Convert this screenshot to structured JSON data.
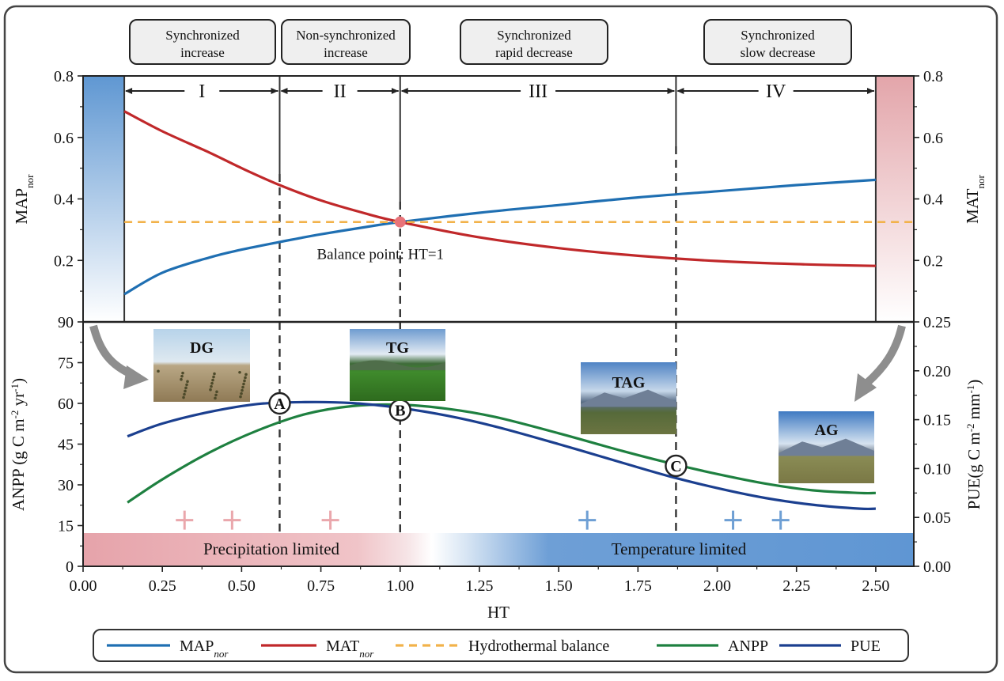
{
  "chart_data": [
    {
      "type": "line",
      "panel": "top",
      "ylabel_left": "MAP",
      "ylabel_left_sub": "nor",
      "ylabel_right": "MAT",
      "ylabel_right_sub": "nor",
      "ylim": [
        0.0,
        0.8
      ],
      "xlim": [
        0.0,
        2.62
      ],
      "y_ticks_left": [
        "0.8",
        "0.6",
        "0.4",
        "0.2"
      ],
      "y_ticks_right": [
        "0.8",
        "0.6",
        "0.4",
        "0.2"
      ],
      "series": [
        {
          "name": "MAP",
          "name_sub": "nor",
          "color": "#1f6fb2",
          "x": [
            0.13,
            0.25,
            0.4,
            0.5,
            0.62,
            0.75,
            0.9,
            1.0,
            1.25,
            1.5,
            1.75,
            2.0,
            2.25,
            2.5
          ],
          "y": [
            0.09,
            0.16,
            0.21,
            0.235,
            0.26,
            0.285,
            0.31,
            0.325,
            0.355,
            0.38,
            0.405,
            0.425,
            0.445,
            0.462
          ]
        },
        {
          "name": "MAT",
          "name_sub": "nor",
          "color": "#c0282a",
          "x": [
            0.13,
            0.25,
            0.4,
            0.5,
            0.62,
            0.75,
            0.9,
            1.0,
            1.25,
            1.5,
            1.75,
            2.0,
            2.25,
            2.5
          ],
          "y": [
            0.685,
            0.62,
            0.55,
            0.5,
            0.445,
            0.395,
            0.35,
            0.325,
            0.275,
            0.24,
            0.215,
            0.198,
            0.188,
            0.182
          ]
        },
        {
          "name": "Hydrothermal balance",
          "color": "#f2b24a",
          "dashed": true,
          "x": [
            0.13,
            2.62
          ],
          "y": [
            0.325,
            0.325
          ]
        }
      ],
      "balance_point": {
        "x": 1.0,
        "y": 0.325,
        "label": "Balance point: HT=1",
        "color": "#e8747a"
      }
    },
    {
      "type": "line",
      "panel": "bottom",
      "xlabel": "HT",
      "ylabel_left": "ANPP (g C m",
      "ylabel_left_tail": "-2",
      "ylabel_left_tail2": " yr",
      "ylabel_left_tail3": "-1",
      "ylabel_left_tail4": ")",
      "ylabel_right": "PUE(g C m",
      "ylabel_right_tail": "-2",
      "ylabel_right_tail2": " mm",
      "ylabel_right_tail3": "-1",
      "ylabel_right_tail4": ")",
      "ylim_left": [
        0,
        90
      ],
      "ylim_right": [
        0.0,
        0.25
      ],
      "xlim": [
        0.0,
        2.62
      ],
      "x_ticks": [
        "0.00",
        "0.25",
        "0.50",
        "0.75",
        "1.00",
        "1.25",
        "1.50",
        "1.75",
        "2.00",
        "2.25",
        "2.50"
      ],
      "y_ticks_left": [
        "90",
        "75",
        "60",
        "45",
        "30",
        "15",
        "0"
      ],
      "y_ticks_right": [
        "0.25",
        "0.20",
        "0.15",
        "0.10",
        "0.05",
        "0.00"
      ],
      "series": [
        {
          "name": "ANPP",
          "color": "#1e8040",
          "axis": "left",
          "x": [
            0.14,
            0.25,
            0.4,
            0.55,
            0.7,
            0.85,
            1.0,
            1.15,
            1.3,
            1.5,
            1.7,
            1.85,
            2.0,
            2.15,
            2.3,
            2.45,
            2.5
          ],
          "y": [
            23.5,
            32,
            42,
            50,
            56,
            59,
            59.5,
            58,
            55,
            49,
            42.5,
            38,
            34,
            30.5,
            28,
            27,
            27
          ]
        },
        {
          "name": "PUE",
          "color": "#1b3f8f",
          "axis": "right",
          "x": [
            0.14,
            0.25,
            0.4,
            0.55,
            0.7,
            0.85,
            1.0,
            1.15,
            1.3,
            1.5,
            1.7,
            1.85,
            2.0,
            2.15,
            2.3,
            2.45,
            2.5
          ],
          "y": [
            0.133,
            0.146,
            0.158,
            0.166,
            0.168,
            0.167,
            0.162,
            0.154,
            0.143,
            0.125,
            0.106,
            0.092,
            0.08,
            0.07,
            0.063,
            0.059,
            0.059
          ]
        }
      ],
      "markers": [
        {
          "label": "A",
          "x": 0.62,
          "y": 60
        },
        {
          "label": "B",
          "x": 1.0,
          "y": 57.5
        },
        {
          "label": "C",
          "x": 1.87,
          "y": 37
        }
      ],
      "plus_marks": [
        {
          "x": 0.32,
          "y": 17,
          "color": "#eaa7ac"
        },
        {
          "x": 0.47,
          "y": 17,
          "color": "#eaa7ac"
        },
        {
          "x": 0.78,
          "y": 17,
          "color": "#eaa7ac"
        },
        {
          "x": 1.59,
          "y": 17,
          "color": "#6e9fd4"
        },
        {
          "x": 2.05,
          "y": 17,
          "color": "#6e9fd4"
        },
        {
          "x": 2.2,
          "y": 17,
          "color": "#6e9fd4"
        }
      ],
      "limits": {
        "left": "Precipitation limited",
        "right": "Temperature limited"
      },
      "photos": [
        "DG",
        "TG",
        "TAG",
        "AG"
      ]
    }
  ],
  "phases": [
    {
      "roman": "I",
      "label_line1": "Synchronized",
      "label_line2": "increase"
    },
    {
      "roman": "II",
      "label_line1": "Non-synchronized",
      "label_line2": "increase"
    },
    {
      "roman": "III",
      "label_line1": "Synchronized",
      "label_line2": "rapid decrease"
    },
    {
      "roman": "IV",
      "label_line1": "Synchronized",
      "label_line2": "slow decrease"
    }
  ],
  "phase_boundaries_x": [
    0.13,
    0.62,
    1.0,
    1.87,
    2.5
  ],
  "legend": [
    {
      "label": "MAP",
      "sub": "nor",
      "color": "#1f6fb2",
      "dashed": false
    },
    {
      "label": "MAT",
      "sub": "nor",
      "color": "#c0282a",
      "dashed": false
    },
    {
      "label": "Hydrothermal balance",
      "sub": "",
      "color": "#f2b24a",
      "dashed": true
    },
    {
      "label": "ANPP",
      "sub": "",
      "color": "#1e8040",
      "dashed": false
    },
    {
      "label": "PUE",
      "sub": "",
      "color": "#1b3f8f",
      "dashed": false
    }
  ]
}
